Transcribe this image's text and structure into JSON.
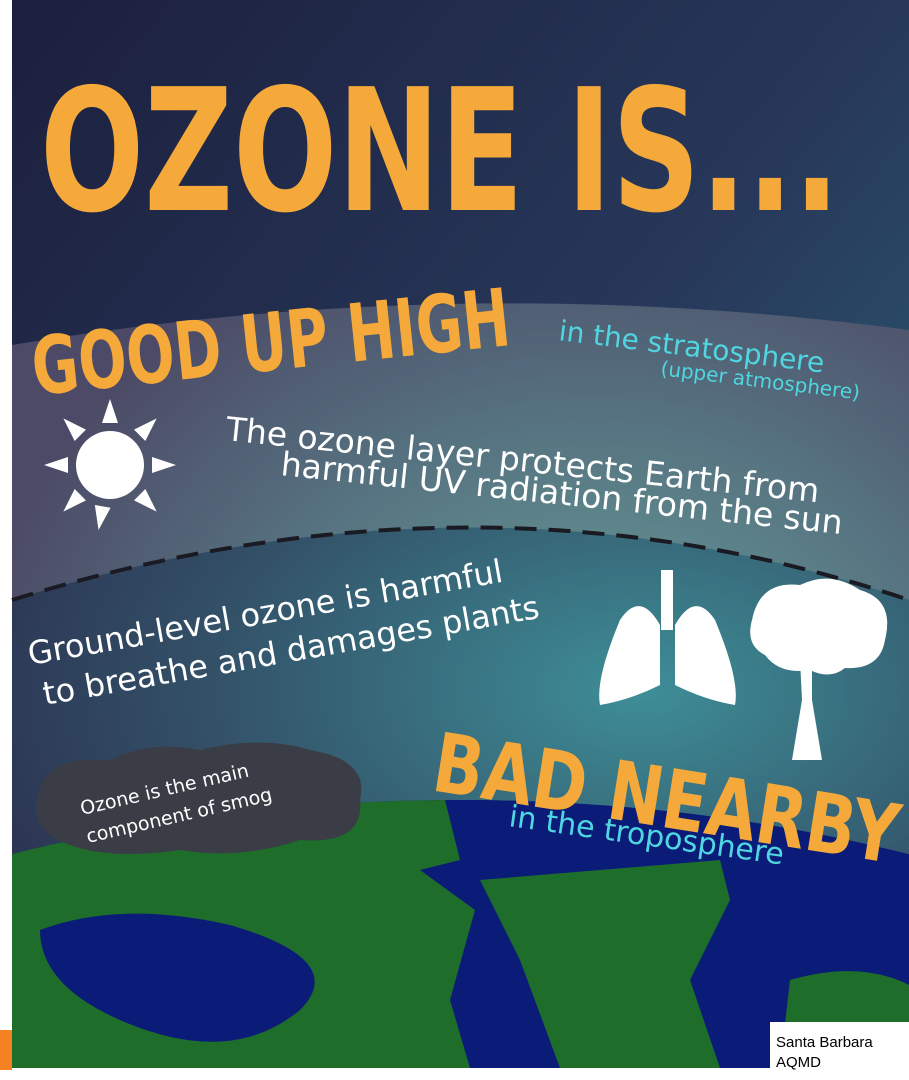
{
  "title": "OZONE IS...",
  "good": {
    "heading": "GOOD UP HIGH",
    "location": "in the stratosphere",
    "sublocation": "(upper atmosphere)",
    "description": [
      "The ozone layer protects Earth from",
      "harmful UV radiation from the sun"
    ]
  },
  "bad": {
    "description": [
      "Ground-level ozone is harmful",
      "to breathe and damages plants"
    ],
    "heading": "BAD NEARBY",
    "location": "in the troposphere"
  },
  "smog": [
    "Ozone is the main",
    "component of smog"
  ],
  "credit": [
    "Santa Barbara",
    "AQMD"
  ]
}
